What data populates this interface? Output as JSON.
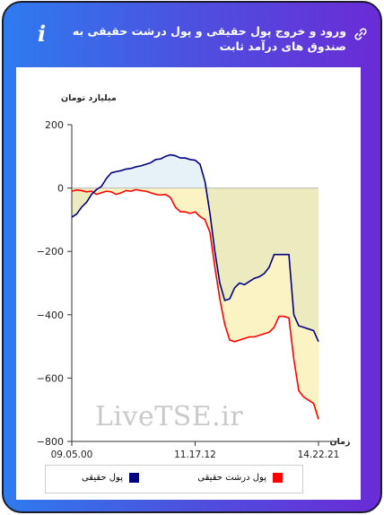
{
  "header": {
    "title": "ورود و خروج پول حقیقی و پول درشت حقیقی به صندوق های درآمد ثابت",
    "info_icon": "info-icon",
    "link_icon": "link-icon",
    "watermark": "LiveTSE.ir"
  },
  "colors": {
    "card_left": "#2e7bf0",
    "card_right": "#6a2bd6",
    "series_real": "#000080",
    "series_big": "#ff0000",
    "fill_pos": "#e6f2f7",
    "fill_neg": "#fbf3c4",
    "fill_neg_between": "#ecebc0"
  },
  "chart_data": {
    "type": "line",
    "ylabel": "میلیارد تومان",
    "xlabel": "زمان",
    "ylim": [
      -800,
      200
    ],
    "yticks": [
      "200",
      "0",
      "−200",
      "−400",
      "−600",
      "−800"
    ],
    "ytick_values": [
      200,
      0,
      -200,
      -400,
      -600,
      -800
    ],
    "xticks": [
      "09.05.00",
      "11.17.12",
      "14.22.21"
    ],
    "xtick_positions": [
      0,
      0.5,
      1
    ],
    "grid": false,
    "legend_placement": "bottom",
    "series": [
      {
        "name": "پول حقیقی",
        "color": "#000080",
        "x": [
          0,
          0.02,
          0.04,
          0.06,
          0.08,
          0.1,
          0.12,
          0.14,
          0.16,
          0.18,
          0.2,
          0.22,
          0.24,
          0.26,
          0.28,
          0.3,
          0.32,
          0.34,
          0.36,
          0.38,
          0.4,
          0.42,
          0.44,
          0.46,
          0.48,
          0.5,
          0.52,
          0.54,
          0.56,
          0.58,
          0.6,
          0.62,
          0.64,
          0.66,
          0.68,
          0.7,
          0.72,
          0.74,
          0.76,
          0.78,
          0.8,
          0.82,
          0.84,
          0.86,
          0.88,
          0.9,
          0.92,
          0.94,
          0.96,
          0.98,
          1.0
        ],
        "values": [
          -92,
          -82,
          -60,
          -45,
          -20,
          -5,
          5,
          30,
          48,
          52,
          55,
          60,
          62,
          67,
          70,
          75,
          80,
          90,
          92,
          100,
          105,
          102,
          95,
          95,
          90,
          88,
          75,
          20,
          -80,
          -200,
          -300,
          -355,
          -350,
          -315,
          -300,
          -305,
          -295,
          -285,
          -280,
          -270,
          -250,
          -210,
          -210,
          -210,
          -210,
          -400,
          -435,
          -440,
          -445,
          -450,
          -485
        ]
      },
      {
        "name": "پول درشت حقیقی",
        "color": "#ff0000",
        "x": [
          0,
          0.02,
          0.04,
          0.06,
          0.08,
          0.1,
          0.12,
          0.14,
          0.16,
          0.18,
          0.2,
          0.22,
          0.24,
          0.26,
          0.28,
          0.3,
          0.32,
          0.34,
          0.36,
          0.38,
          0.4,
          0.42,
          0.44,
          0.46,
          0.48,
          0.5,
          0.52,
          0.54,
          0.56,
          0.58,
          0.6,
          0.62,
          0.64,
          0.66,
          0.68,
          0.7,
          0.72,
          0.74,
          0.76,
          0.78,
          0.8,
          0.82,
          0.84,
          0.86,
          0.88,
          0.9,
          0.92,
          0.94,
          0.96,
          0.98,
          1.0
        ],
        "values": [
          -10,
          -6,
          -8,
          -12,
          -10,
          -20,
          -15,
          -10,
          -12,
          -20,
          -15,
          -8,
          -10,
          -5,
          -8,
          -10,
          -15,
          -20,
          -22,
          -20,
          -30,
          -60,
          -75,
          -75,
          -80,
          -75,
          -90,
          -100,
          -140,
          -250,
          -350,
          -430,
          -480,
          -485,
          -480,
          -475,
          -470,
          -470,
          -465,
          -460,
          -455,
          -440,
          -405,
          -405,
          -410,
          -540,
          -640,
          -660,
          -670,
          -680,
          -730
        ]
      }
    ]
  },
  "legend": {
    "real_label": "پول حقیقی",
    "big_label": "پول درشت حقیقی"
  }
}
